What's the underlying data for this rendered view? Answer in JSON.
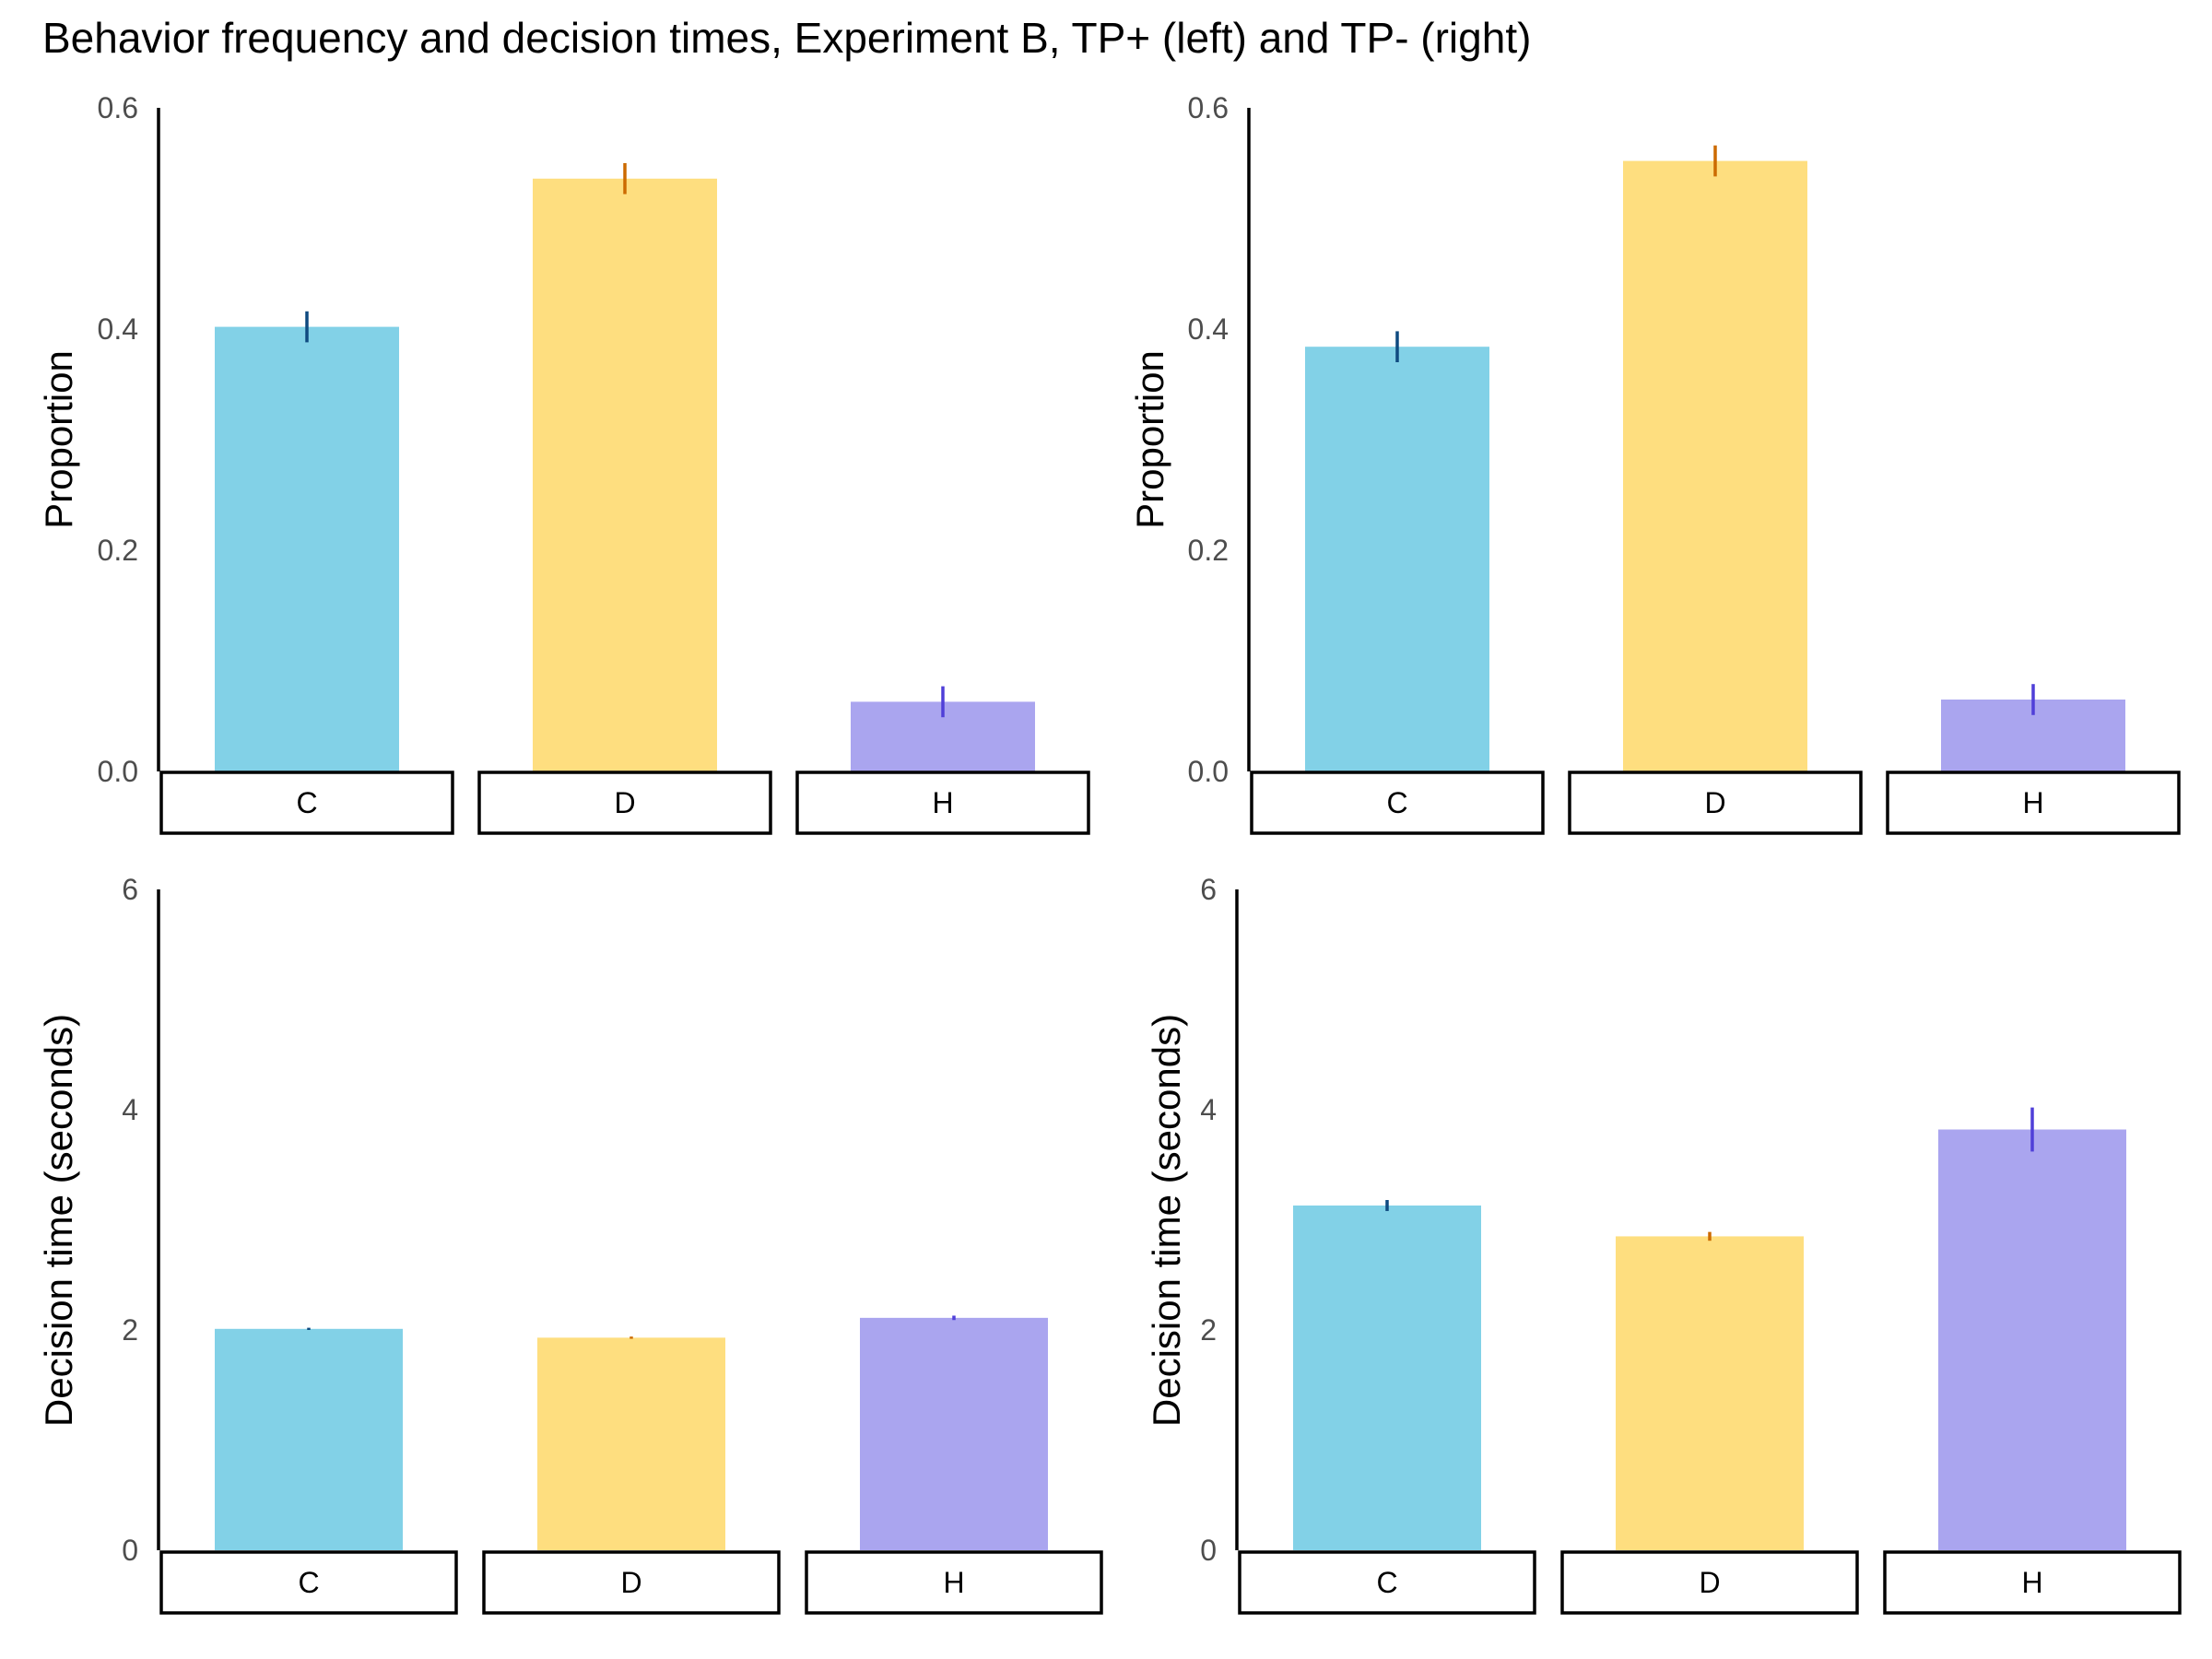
{
  "title": "Behavior frequency and decision times, Experiment B, TP+ (left) and TP- (right)",
  "colors": {
    "C": "#82d1e7",
    "D": "#fede7f",
    "H": "#aaa5ef",
    "err_C": "#0f4a80",
    "err_D": "#cc6a00",
    "err_H": "#4f3fd8"
  },
  "chart_data": [
    {
      "id": "tp-plus-proportion",
      "type": "bar",
      "categories": [
        "C",
        "D",
        "H"
      ],
      "values": [
        0.402,
        0.536,
        0.063
      ],
      "errors": [
        0.014,
        0.014,
        0.014
      ],
      "ylabel": "Proportion",
      "ylim": [
        0,
        0.6
      ],
      "yticks": [
        "0.0",
        "0.2",
        "0.4",
        "0.6"
      ]
    },
    {
      "id": "tp-minus-proportion",
      "type": "bar",
      "categories": [
        "C",
        "D",
        "H"
      ],
      "values": [
        0.384,
        0.552,
        0.065
      ],
      "errors": [
        0.014,
        0.014,
        0.014
      ],
      "ylabel": "Proportion",
      "ylim": [
        0,
        0.6
      ],
      "yticks": [
        "0.0",
        "0.2",
        "0.4",
        "0.6"
      ]
    },
    {
      "id": "tp-plus-decision-time",
      "type": "bar",
      "categories": [
        "C",
        "D",
        "H"
      ],
      "values": [
        2.01,
        1.93,
        2.11
      ],
      "errors": [
        0.01,
        0.01,
        0.02
      ],
      "ylabel": "Decision time (seconds)",
      "ylim": [
        0,
        6
      ],
      "yticks": [
        "0",
        "2",
        "4",
        "6"
      ]
    },
    {
      "id": "tp-minus-decision-time",
      "type": "bar",
      "categories": [
        "C",
        "D",
        "H"
      ],
      "values": [
        3.13,
        2.85,
        3.82
      ],
      "errors": [
        0.05,
        0.04,
        0.2
      ],
      "ylabel": "Decision time (seconds)",
      "ylim": [
        0,
        6
      ],
      "yticks": [
        "0",
        "2",
        "4",
        "6"
      ]
    }
  ]
}
